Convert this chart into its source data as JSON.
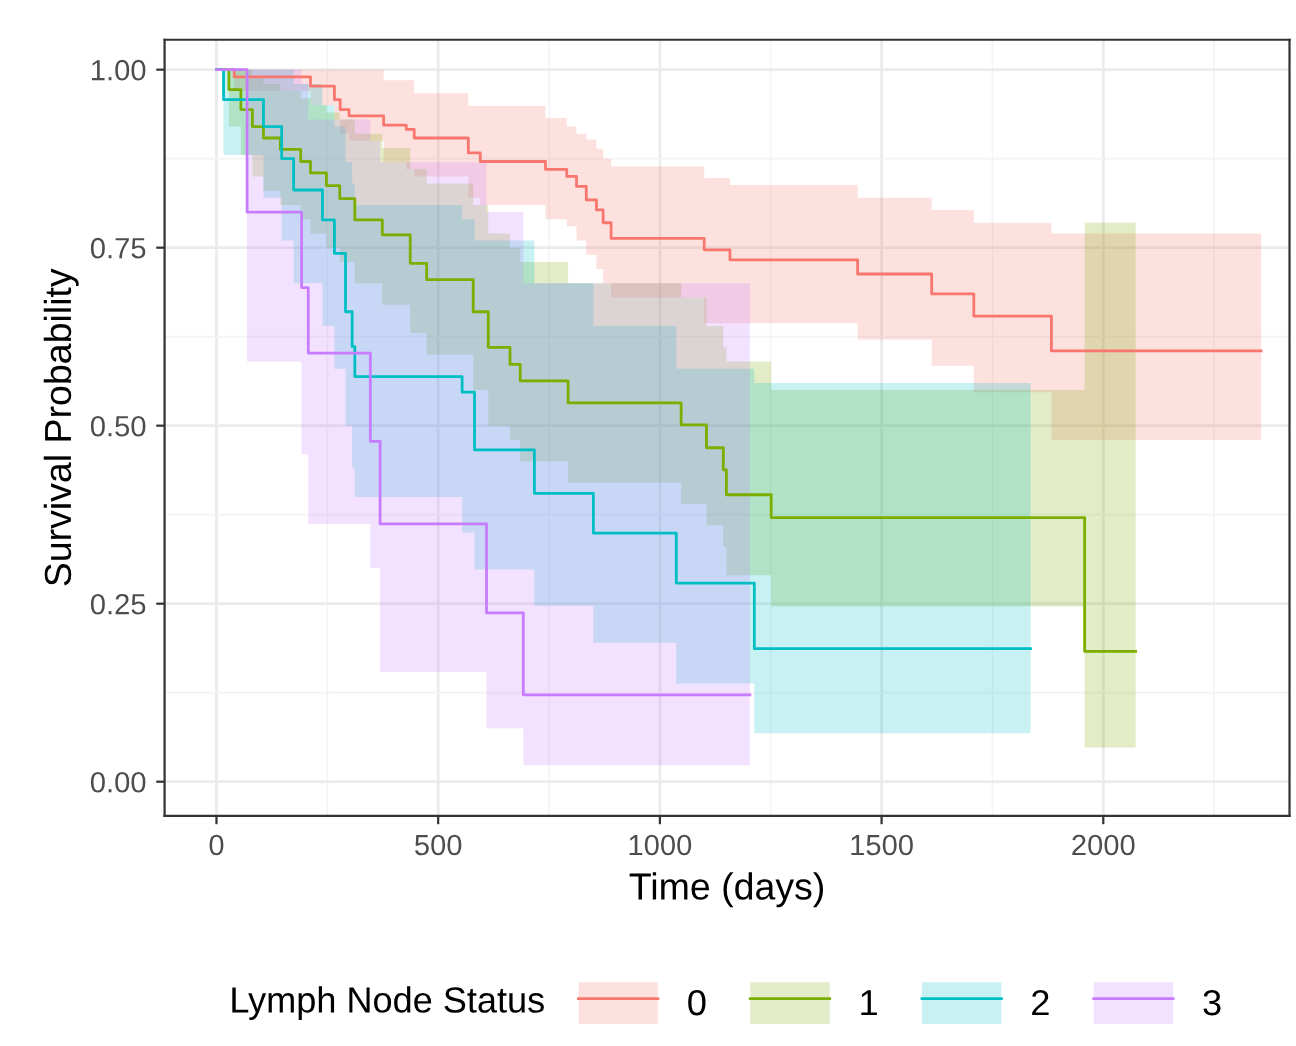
{
  "chart_data": {
    "type": "step",
    "xlabel": "Time (days)",
    "ylabel": "Survival Probability",
    "legend_title": "Lymph Node Status",
    "legend": "bottom",
    "grid": true,
    "xlim": [
      -117,
      2420
    ],
    "ylim": [
      -0.048,
      1.042
    ],
    "xticks": [
      0,
      500,
      1000,
      1500,
      2000
    ],
    "yticks": [
      {
        "value": 0,
        "label": "0.00"
      },
      {
        "value": 0.25,
        "label": "0.25"
      },
      {
        "value": 0.5,
        "label": "0.50"
      },
      {
        "value": 0.75,
        "label": "0.75"
      },
      {
        "value": 1,
        "label": "1.00"
      }
    ],
    "series": [
      {
        "name": "0",
        "color": "#f8766d",
        "x": [
          0,
          40,
          212,
          266,
          279,
          299,
          377,
          428,
          446,
          568,
          595,
          742,
          790,
          812,
          834,
          857,
          872,
          890,
          1100,
          1158,
          1446,
          1613,
          1708,
          1883,
          2356
        ],
        "values": [
          1.0,
          0.99,
          0.977,
          0.958,
          0.944,
          0.935,
          0.922,
          0.916,
          0.904,
          0.883,
          0.871,
          0.86,
          0.85,
          0.836,
          0.817,
          0.803,
          0.785,
          0.763,
          0.747,
          0.733,
          0.713,
          0.685,
          0.654,
          0.605,
          0.605
        ],
        "lower": [
          1.0,
          0.97,
          0.95,
          0.93,
          0.91,
          0.9,
          0.87,
          0.86,
          0.85,
          0.82,
          0.81,
          0.79,
          0.78,
          0.76,
          0.74,
          0.72,
          0.7,
          0.68,
          0.644,
          0.644,
          0.621,
          0.584,
          0.547,
          0.48,
          0.48
        ],
        "upper": [
          1.0,
          1.0,
          1.0,
          1.0,
          1.0,
          1.0,
          0.985,
          0.985,
          0.967,
          0.949,
          0.949,
          0.932,
          0.92,
          0.91,
          0.902,
          0.889,
          0.875,
          0.864,
          0.848,
          0.838,
          0.82,
          0.803,
          0.785,
          0.77,
          0.77
        ]
      },
      {
        "name": "1",
        "color": "#7cae00",
        "x": [
          0,
          28,
          55,
          81,
          106,
          144,
          190,
          212,
          248,
          278,
          312,
          374,
          437,
          474,
          579,
          613,
          662,
          685,
          793,
          1048,
          1105,
          1143,
          1150,
          1251,
          1958,
          2073
        ],
        "values": [
          1.0,
          0.972,
          0.944,
          0.92,
          0.904,
          0.888,
          0.871,
          0.855,
          0.837,
          0.819,
          0.789,
          0.768,
          0.728,
          0.705,
          0.66,
          0.61,
          0.586,
          0.563,
          0.532,
          0.501,
          0.469,
          0.438,
          0.403,
          0.371,
          0.183,
          0.183
        ],
        "lower": [
          1.0,
          0.92,
          0.88,
          0.85,
          0.83,
          0.81,
          0.79,
          0.77,
          0.75,
          0.73,
          0.7,
          0.67,
          0.63,
          0.6,
          0.55,
          0.5,
          0.48,
          0.45,
          0.42,
          0.39,
          0.36,
          0.33,
          0.29,
          0.246,
          0.048,
          0.048
        ],
        "upper": [
          1.0,
          1.0,
          1.0,
          0.99,
          0.98,
          0.97,
          0.96,
          0.95,
          0.94,
          0.93,
          0.91,
          0.89,
          0.86,
          0.84,
          0.81,
          0.77,
          0.75,
          0.73,
          0.7,
          0.68,
          0.64,
          0.61,
          0.59,
          0.55,
          0.785,
          0.785
        ]
      },
      {
        "name": "2",
        "color": "#00bfc4",
        "x": [
          0,
          16,
          106,
          147,
          174,
          239,
          266,
          291,
          306,
          312,
          554,
          582,
          717,
          850,
          1037,
          1213,
          1836
        ],
        "values": [
          1.0,
          0.958,
          0.92,
          0.875,
          0.831,
          0.789,
          0.742,
          0.66,
          0.611,
          0.569,
          0.547,
          0.466,
          0.405,
          0.349,
          0.279,
          0.187,
          0.187
        ],
        "lower": [
          1.0,
          0.88,
          0.82,
          0.76,
          0.7,
          0.64,
          0.58,
          0.5,
          0.44,
          0.4,
          0.35,
          0.298,
          0.247,
          0.195,
          0.138,
          0.068,
          0.068
        ],
        "upper": [
          1.0,
          1.0,
          1.0,
          1.0,
          0.98,
          0.95,
          0.92,
          0.87,
          0.84,
          0.81,
          0.79,
          0.76,
          0.7,
          0.64,
          0.58,
          0.56,
          0.56
        ]
      },
      {
        "name": "3",
        "color": "#c77cff",
        "x": [
          0,
          69,
          192,
          207,
          347,
          369,
          609,
          692,
          1203
        ],
        "values": [
          1.0,
          0.8,
          0.694,
          0.602,
          0.478,
          0.362,
          0.237,
          0.122,
          0.122
        ],
        "lower": [
          1.0,
          0.59,
          0.46,
          0.362,
          0.3,
          0.154,
          0.075,
          0.023,
          0.023
        ],
        "upper": [
          1.0,
          1.0,
          0.98,
          0.93,
          0.9,
          0.87,
          0.8,
          0.7,
          0.7
        ]
      }
    ]
  }
}
